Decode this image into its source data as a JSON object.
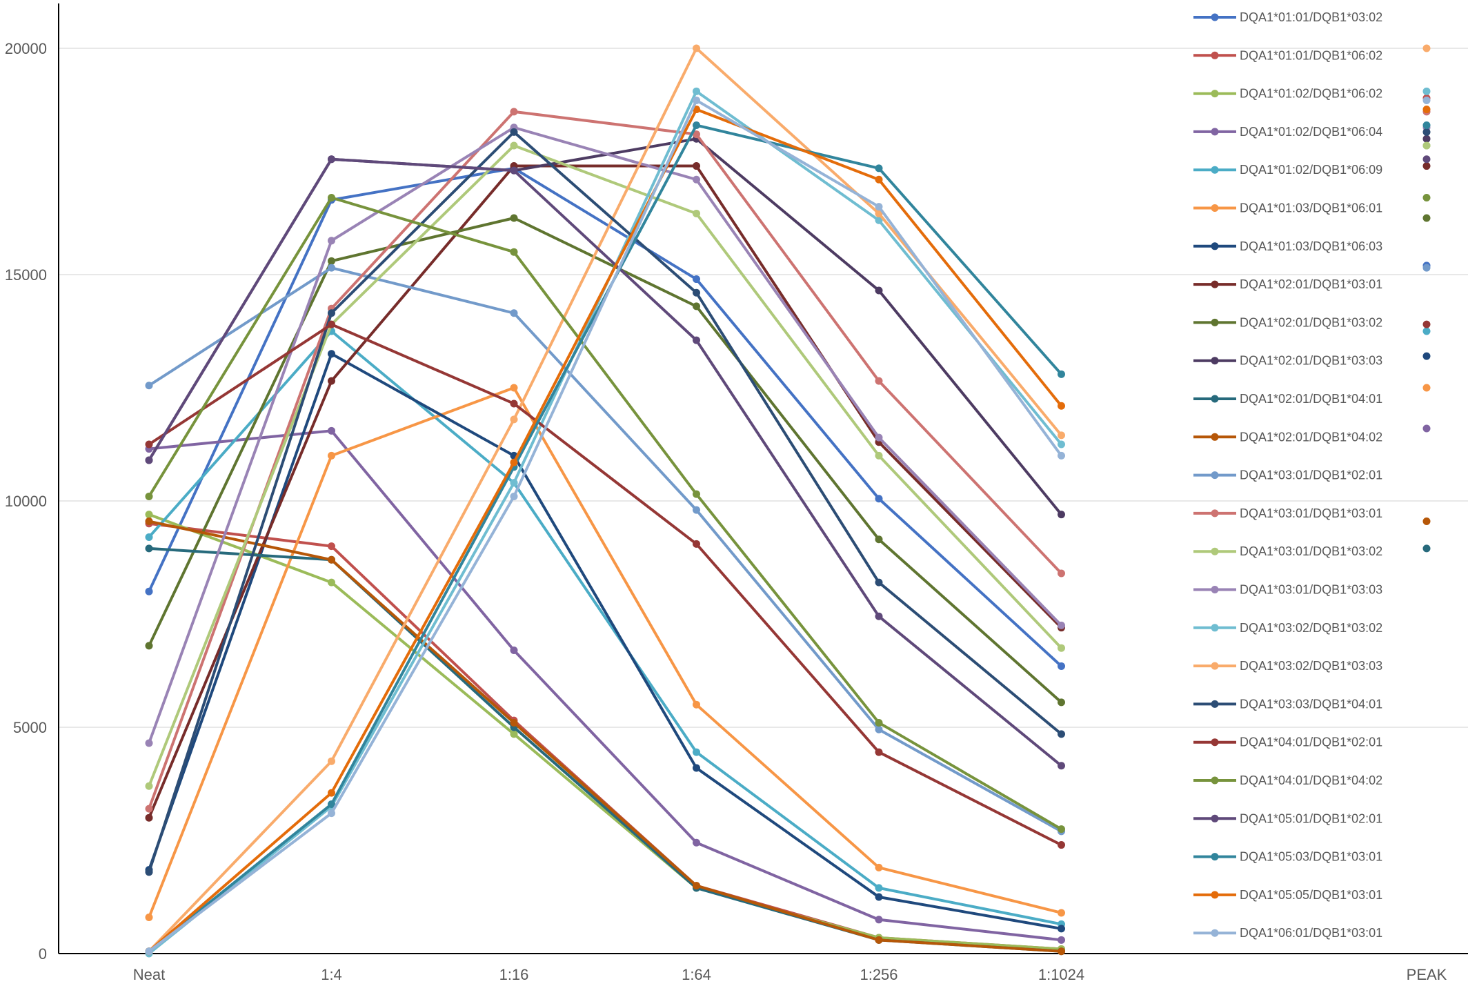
{
  "chart_data": {
    "type": "line",
    "title": "",
    "xlabel": "",
    "ylabel": "",
    "categories": [
      "Neat",
      "1:4",
      "1:16",
      "1:64",
      "1:256",
      "1:1024"
    ],
    "peak_category": "PEAK",
    "ylim": [
      0,
      21000
    ],
    "yticks": [
      0,
      5000,
      10000,
      15000,
      20000
    ],
    "ytick_labels": [
      "0",
      "5000",
      "10000",
      "15000",
      "20000"
    ],
    "grid": true,
    "legend_position": "right",
    "series": [
      {
        "name": "DQA1*01:01/DQB1*03:02",
        "color": "#4472C4",
        "values": [
          8000,
          16650,
          17350,
          14900,
          10050,
          6350
        ],
        "peak": 15200
      },
      {
        "name": "DQA1*01:01/DQB1*06:02",
        "color": "#C0504D",
        "values": [
          9500,
          9000,
          5150,
          1500,
          350,
          100
        ],
        "peak": 18900
      },
      {
        "name": "DQA1*01:02/DQB1*06:02",
        "color": "#9BBB59",
        "values": [
          9700,
          8200,
          4850,
          1450,
          350,
          100
        ],
        "peak": 17850
      },
      {
        "name": "DQA1*01:02/DQB1*06:04",
        "color": "#8064A2",
        "values": [
          11150,
          11550,
          6700,
          2450,
          750,
          300
        ],
        "peak": 11600
      },
      {
        "name": "DQA1*01:02/DQB1*06:09",
        "color": "#4BACC6",
        "values": [
          9200,
          13750,
          10400,
          4450,
          1450,
          650
        ],
        "peak": 13750
      },
      {
        "name": "DQA1*01:03/DQB1*06:01",
        "color": "#F79646",
        "values": [
          800,
          11000,
          12500,
          5500,
          1900,
          900
        ],
        "peak": 12500
      },
      {
        "name": "DQA1*01:03/DQB1*06:03",
        "color": "#1F497D",
        "values": [
          1850,
          13250,
          11000,
          4100,
          1250,
          550
        ],
        "peak": 13200
      },
      {
        "name": "DQA1*02:01/DQB1*03:01",
        "color": "#772C2A",
        "values": [
          3000,
          12650,
          17400,
          17400,
          11300,
          7200
        ],
        "peak": 17400
      },
      {
        "name": "DQA1*02:01/DQB1*03:02",
        "color": "#5F7530",
        "values": [
          6800,
          15300,
          16250,
          14300,
          9150,
          5550
        ],
        "peak": 16250
      },
      {
        "name": "DQA1*02:01/DQB1*03:03",
        "color": "#4D3B62",
        "values": [
          10900,
          17550,
          17300,
          18000,
          14650,
          9700
        ],
        "peak": 18000
      },
      {
        "name": "DQA1*02:01/DQB1*04:01",
        "color": "#276A7C",
        "values": [
          8950,
          8700,
          5000,
          1450,
          300,
          50
        ],
        "peak": 8950
      },
      {
        "name": "DQA1*02:01/DQB1*04:02",
        "color": "#B65708",
        "values": [
          9550,
          8700,
          5100,
          1500,
          300,
          50
        ],
        "peak": 9550
      },
      {
        "name": "DQA1*03:01/DQB1*02:01",
        "color": "#729ACA",
        "values": [
          12550,
          15150,
          14150,
          9800,
          4950,
          2700
        ],
        "peak": 15150
      },
      {
        "name": "DQA1*03:01/DQB1*03:01",
        "color": "#CD7371",
        "values": [
          3200,
          14250,
          18600,
          18100,
          12650,
          8400
        ],
        "peak": 18600
      },
      {
        "name": "DQA1*03:01/DQB1*03:02",
        "color": "#AFC97A",
        "values": [
          3700,
          13900,
          17850,
          16350,
          11000,
          6750
        ],
        "peak": 17850
      },
      {
        "name": "DQA1*03:01/DQB1*03:03",
        "color": "#9983B5",
        "values": [
          4650,
          15750,
          18250,
          17100,
          11400,
          7250
        ],
        "peak": 18250
      },
      {
        "name": "DQA1*03:02/DQB1*03:02",
        "color": "#6FBDD1",
        "values": [
          0,
          3250,
          10400,
          19050,
          16200,
          11250
        ],
        "peak": 19050
      },
      {
        "name": "DQA1*03:02/DQB1*03:03",
        "color": "#F9AB6B",
        "values": [
          50,
          4250,
          11800,
          20000,
          16350,
          11450
        ],
        "peak": 20000
      },
      {
        "name": "DQA1*03:03/DQB1*04:01",
        "color": "#2C4D75",
        "values": [
          1800,
          14150,
          18150,
          14600,
          8200,
          4850
        ],
        "peak": 18150
      },
      {
        "name": "DQA1*04:01/DQB1*02:01",
        "color": "#953735",
        "values": [
          11250,
          13900,
          12150,
          9050,
          4450,
          2400
        ],
        "peak": 13900
      },
      {
        "name": "DQA1*04:01/DQB1*04:02",
        "color": "#77933C",
        "values": [
          10100,
          16700,
          15500,
          10150,
          5100,
          2750
        ],
        "peak": 16700
      },
      {
        "name": "DQA1*05:01/DQB1*02:01",
        "color": "#5F497A",
        "values": [
          10900,
          17550,
          17300,
          13550,
          7450,
          4150
        ],
        "peak": 17550
      },
      {
        "name": "DQA1*05:03/DQB1*03:01",
        "color": "#31859C",
        "values": [
          50,
          3300,
          10750,
          18300,
          17350,
          12800
        ],
        "peak": 18300
      },
      {
        "name": "DQA1*05:05/DQB1*03:01",
        "color": "#E46C0A",
        "values": [
          50,
          3550,
          10850,
          18650,
          17100,
          12100
        ],
        "peak": 18650
      },
      {
        "name": "DQA1*06:01/DQB1*03:01",
        "color": "#95B3D7",
        "values": [
          50,
          3100,
          10100,
          18850,
          16500,
          11000
        ],
        "peak": 18850
      }
    ]
  }
}
